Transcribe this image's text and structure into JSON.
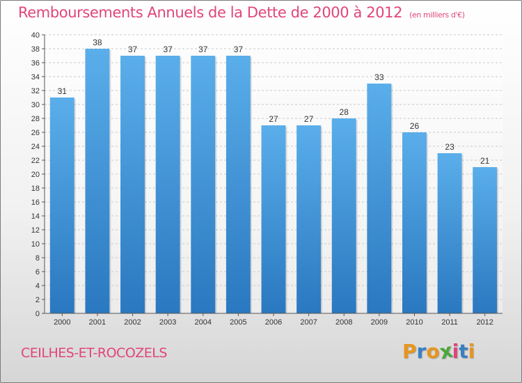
{
  "header": {
    "title": "Remboursements Annuels de la Dette de 2000 à 2012",
    "subtitle": "(en milliers d'€)"
  },
  "footer": {
    "commune": "CEILHES-ET-ROCOZELS",
    "logo_letters": [
      "P",
      "r",
      "o",
      "x",
      "i",
      "t",
      "i"
    ],
    "logo_colors": [
      "#e8951c",
      "#3a7fc1",
      "#e8951c",
      "#4aa83a",
      "#e0457b",
      "#3a7fc1",
      "#e8951c"
    ]
  },
  "chart_data": {
    "type": "bar",
    "categories": [
      "2000",
      "2001",
      "2002",
      "2003",
      "2004",
      "2005",
      "2006",
      "2007",
      "2008",
      "2009",
      "2010",
      "2011",
      "2012"
    ],
    "values": [
      31,
      38,
      37,
      37,
      37,
      37,
      27,
      27,
      28,
      33,
      26,
      23,
      21
    ],
    "title": "Remboursements Annuels de la Dette de 2000 à 2012",
    "xlabel": "",
    "ylabel": "",
    "ylim": [
      0,
      40
    ],
    "ytick_step": 2,
    "grid": true,
    "bar_color": "#3b8fd8"
  }
}
